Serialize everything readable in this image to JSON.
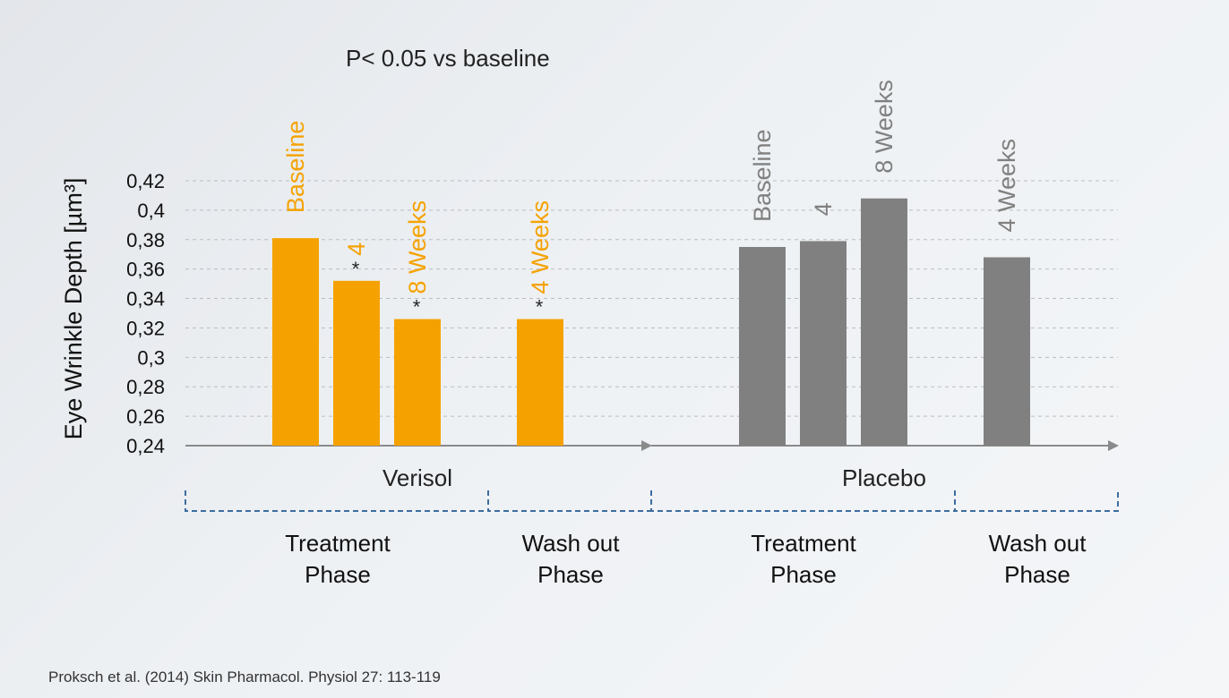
{
  "chart_data": {
    "type": "bar",
    "annotation": "P< 0.05 vs baseline",
    "ylabel": "Eye Wrinkle Depth [µm³]",
    "ylim": [
      0.24,
      0.42
    ],
    "yticks": [
      {
        "value": 0.24,
        "label": "0,24"
      },
      {
        "value": 0.26,
        "label": "0,26"
      },
      {
        "value": 0.28,
        "label": "0,28"
      },
      {
        "value": 0.3,
        "label": "0,3"
      },
      {
        "value": 0.32,
        "label": "0,32"
      },
      {
        "value": 0.34,
        "label": "0,34"
      },
      {
        "value": 0.36,
        "label": "0,36"
      },
      {
        "value": 0.38,
        "label": "0,38"
      },
      {
        "value": 0.4,
        "label": "0,4"
      },
      {
        "value": 0.42,
        "label": "0,42"
      }
    ],
    "grid": true,
    "groups": [
      {
        "name": "Verisol",
        "color": "#f5a200",
        "bars": [
          {
            "label": "Baseline",
            "value": 0.381,
            "significant": false
          },
          {
            "label": "4",
            "value": 0.352,
            "significant": true
          },
          {
            "label": "8 Weeks",
            "value": 0.326,
            "significant": true
          },
          {
            "label": "4 Weeks",
            "value": 0.326,
            "significant": true
          }
        ]
      },
      {
        "name": "Placebo",
        "color": "#808080",
        "bars": [
          {
            "label": "Baseline",
            "value": 0.375,
            "significant": false
          },
          {
            "label": "4",
            "value": 0.379,
            "significant": false
          },
          {
            "label": "8 Weeks",
            "value": 0.408,
            "significant": false
          },
          {
            "label": "4 Weeks",
            "value": 0.368,
            "significant": false
          }
        ]
      }
    ],
    "significance_marker": "*",
    "phases": [
      {
        "line1": "Treatment",
        "line2": "Phase"
      },
      {
        "line1": "Wash out",
        "line2": "Phase"
      },
      {
        "line1": "Treatment",
        "line2": "Phase"
      },
      {
        "line1": "Wash out",
        "line2": "Phase"
      }
    ]
  },
  "citation": "Proksch et al. (2014) Skin Pharmacol. Physiol 27: 113-119"
}
